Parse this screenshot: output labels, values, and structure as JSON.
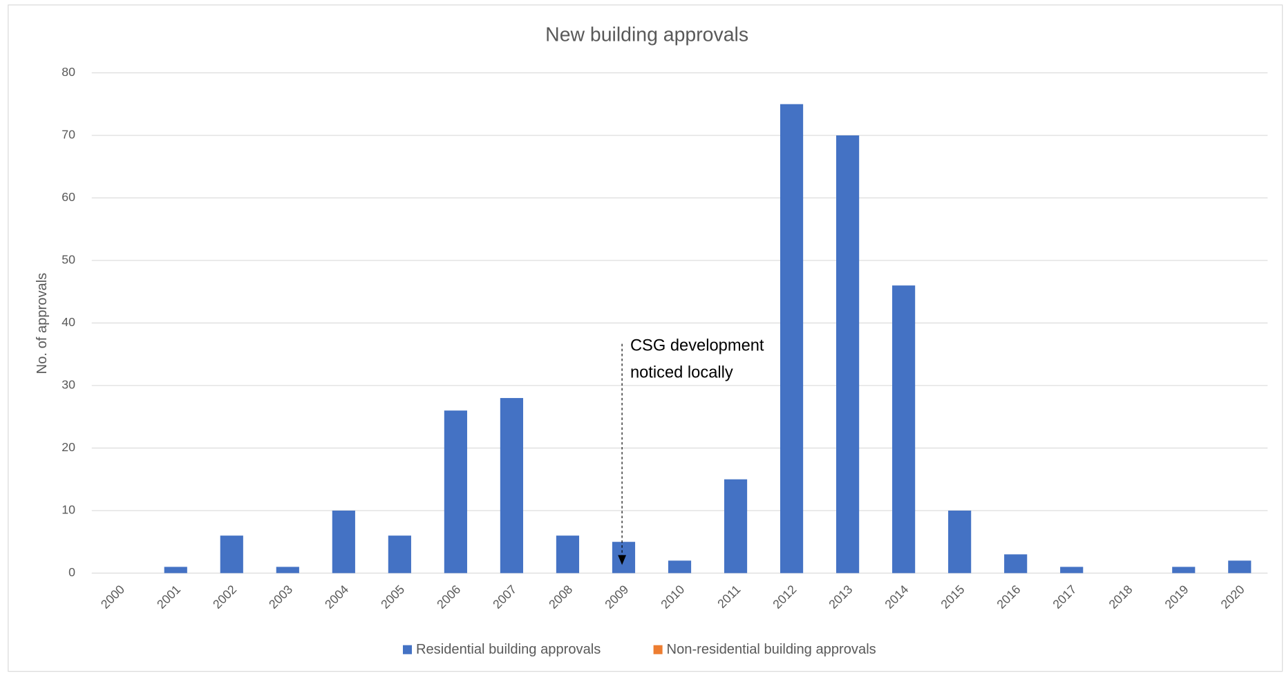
{
  "chart_data": {
    "type": "bar",
    "title": "New building approvals",
    "y_label": "No. of approvals",
    "categories": [
      "2000",
      "2001",
      "2002",
      "2003",
      "2004",
      "2005",
      "2006",
      "2007",
      "2008",
      "2009",
      "2010",
      "2011",
      "2012",
      "2013",
      "2014",
      "2015",
      "2016",
      "2017",
      "2018",
      "2019",
      "2020"
    ],
    "series": [
      {
        "name": "Residential building approvals",
        "color": "#4472c4",
        "values": [
          0,
          1,
          6,
          1,
          10,
          6,
          26,
          28,
          6,
          5,
          2,
          15,
          75,
          70,
          46,
          10,
          3,
          1,
          0,
          1,
          2
        ]
      },
      {
        "name": "Non-residential building approvals",
        "color": "#ed7d31",
        "values": [
          0,
          0,
          0,
          0,
          0,
          0,
          0,
          0,
          0,
          0,
          0,
          0,
          0,
          0,
          0,
          0,
          0,
          0,
          0,
          0,
          0
        ]
      }
    ],
    "ylim": [
      0,
      80
    ],
    "yticks": [
      0,
      10,
      20,
      30,
      40,
      50,
      60,
      70,
      80
    ],
    "grid": true,
    "legend": "bottom",
    "annotation": {
      "lines": [
        "CSG development",
        "noticed locally"
      ],
      "category": "2009"
    }
  }
}
